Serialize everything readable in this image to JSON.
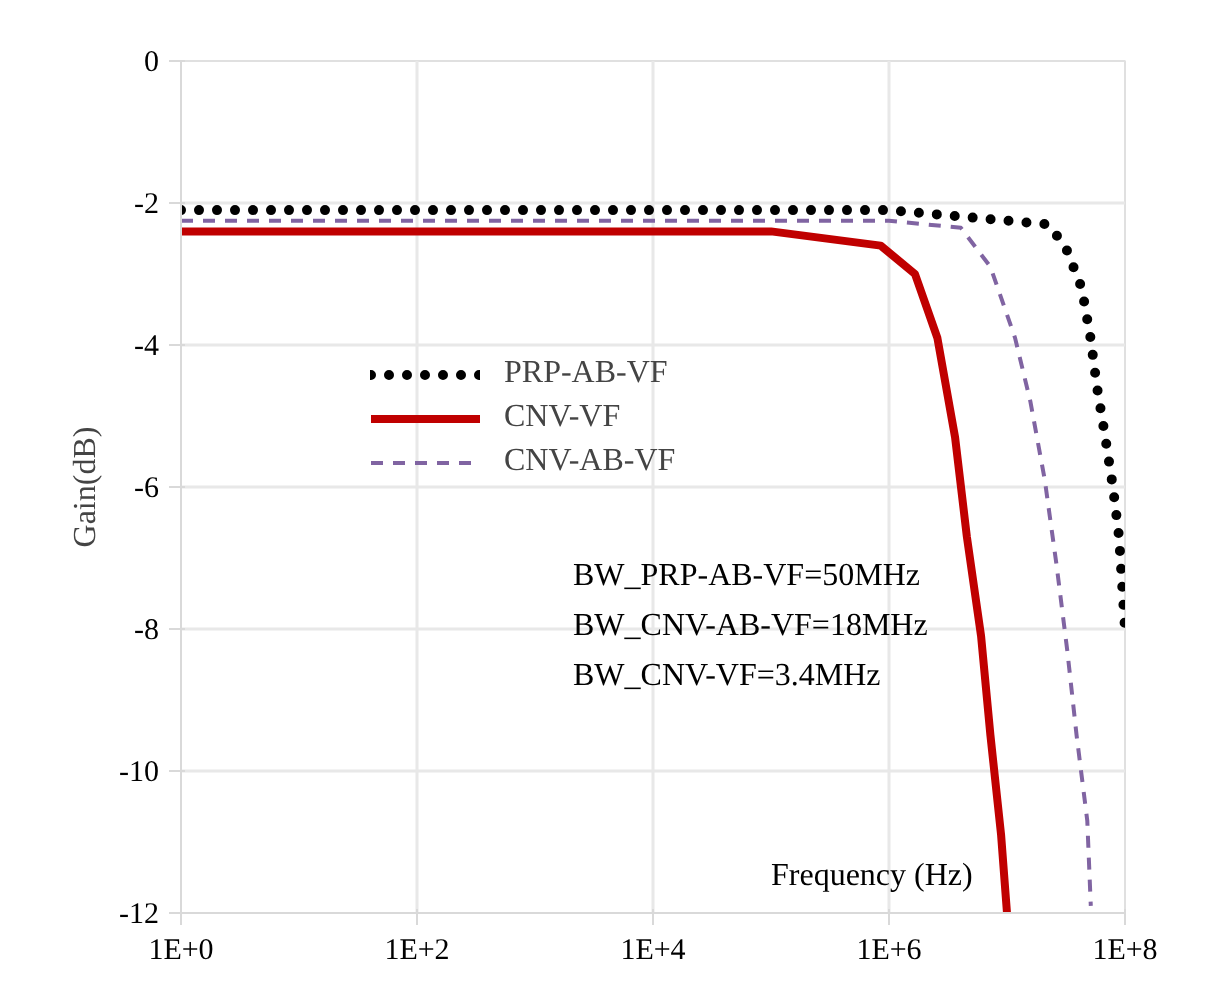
{
  "chart_data": {
    "type": "line",
    "ylabel": "Gain(dB)",
    "xlabel": "Frequency (Hz)",
    "log": "x",
    "xlim": [
      1,
      100000000
    ],
    "xticks": [
      {
        "value": 1,
        "label": "1E+0"
      },
      {
        "value": 100,
        "label": "1E+2"
      },
      {
        "value": 10000,
        "label": "1E+4"
      },
      {
        "value": 1000000,
        "label": "1E+6"
      },
      {
        "value": 100000000,
        "label": "1E+8"
      }
    ],
    "ylim": [
      -12,
      0
    ],
    "yticks": [
      -12,
      -10,
      -8,
      -6,
      -4,
      -2,
      0
    ],
    "grid": true,
    "legend": "center",
    "marker": "none",
    "annotations": [
      "BW_PRP-AB-VF=50MHz",
      "BW_CNV-AB-VF=18MHz",
      "BW_CNV-VF=3.4MHz"
    ],
    "series": [
      {
        "name": "PRP-AB-VF",
        "color": "#000000",
        "line_style": "dotted",
        "x": [
          1,
          1000000,
          22000000,
          31000000,
          43000000,
          51000000,
          58000000,
          68000000,
          79000000,
          89000000,
          100000000
        ],
        "values": [
          -2.1,
          -2.1,
          -2.3,
          -2.6,
          -3.2,
          -3.9,
          -4.6,
          -5.3,
          -6.0,
          -6.7,
          -8.0
        ]
      },
      {
        "name": "CNV-VF",
        "color": "#c00000",
        "line_style": "solid",
        "x": [
          1,
          100000,
          850000,
          1660000,
          2570000,
          3630000,
          4570000,
          6030000,
          7240000,
          8910000,
          10000000
        ],
        "values": [
          -2.4,
          -2.4,
          -2.6,
          -3.0,
          -3.9,
          -5.3,
          -6.7,
          -8.1,
          -9.5,
          -10.9,
          -12.0
        ]
      },
      {
        "name": "CNV-AB-VF",
        "color": "#8064a2",
        "line_style": "dashed",
        "x": [
          1,
          1000000,
          4070000,
          7240000,
          11700000,
          15800000,
          20900000,
          26300000,
          32400000,
          38900000,
          47900000,
          51300000
        ],
        "values": [
          -2.25,
          -2.25,
          -2.35,
          -2.9,
          -3.9,
          -4.8,
          -5.9,
          -7.1,
          -8.3,
          -9.5,
          -10.7,
          -11.9
        ]
      }
    ]
  }
}
